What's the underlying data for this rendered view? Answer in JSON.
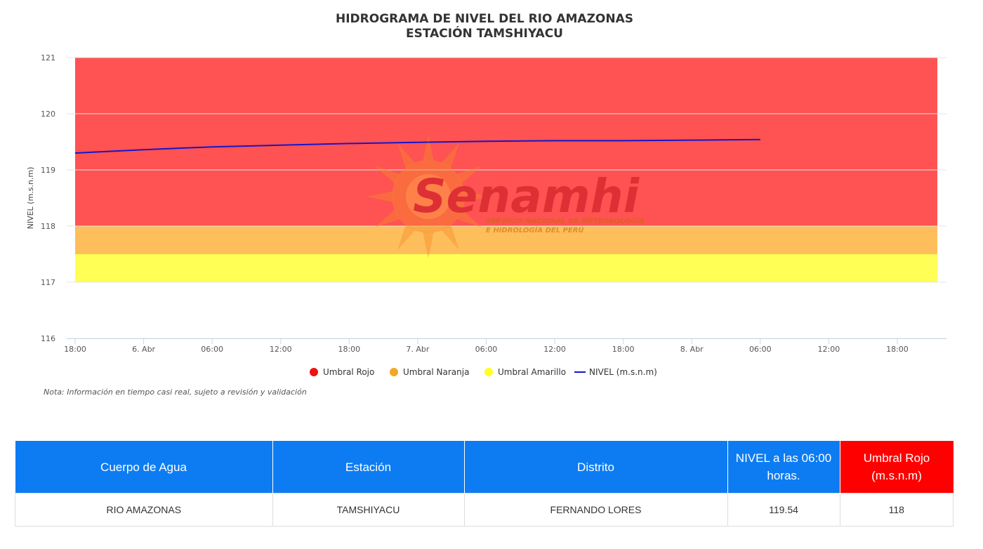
{
  "chart_data": {
    "type": "line",
    "title": "HIDROGRAMA DE NIVEL DEL RIO AMAZONAS",
    "subtitle": "ESTACIÓN TAMSHIYACU",
    "ylabel": "NIVEL (m.s.n.m)",
    "xlabel": "",
    "ylim": [
      116,
      121
    ],
    "yticks": [
      121,
      120,
      119,
      118,
      117,
      116
    ],
    "x_range": [
      "2024-04-05T18:00",
      "2024-04-08T22:00"
    ],
    "xtick_labels": [
      "18:00",
      "6. Abr",
      "06:00",
      "12:00",
      "18:00",
      "7. Abr",
      "06:00",
      "12:00",
      "18:00",
      "8. Abr",
      "06:00",
      "12:00",
      "18:00"
    ],
    "xtick_values": [
      "2024-04-05T18:00",
      "2024-04-06T00:00",
      "2024-04-06T06:00",
      "2024-04-06T12:00",
      "2024-04-06T18:00",
      "2024-04-07T00:00",
      "2024-04-07T06:00",
      "2024-04-07T12:00",
      "2024-04-07T18:00",
      "2024-04-08T00:00",
      "2024-04-08T06:00",
      "2024-04-08T12:00",
      "2024-04-08T18:00"
    ],
    "grid": true,
    "bands": [
      {
        "name": "Umbral Rojo",
        "from": 118,
        "to": 121,
        "color": "#ff5252"
      },
      {
        "name": "Umbral Naranja",
        "from": 117.5,
        "to": 118,
        "color": "#ffbe5c"
      },
      {
        "name": "Umbral Amarillo",
        "from": 117,
        "to": 117.5,
        "color": "#ffff55"
      }
    ],
    "series": [
      {
        "name": "NIVEL (m.s.n.m)",
        "color": "#1515c8",
        "x": [
          "2024-04-05T18:00",
          "2024-04-06T00:00",
          "2024-04-06T06:00",
          "2024-04-06T12:00",
          "2024-04-06T18:00",
          "2024-04-07T00:00",
          "2024-04-07T06:00",
          "2024-04-07T12:00",
          "2024-04-07T18:00",
          "2024-04-08T00:00",
          "2024-04-08T06:00"
        ],
        "y": [
          119.3,
          119.36,
          119.41,
          119.44,
          119.47,
          119.49,
          119.51,
          119.52,
          119.52,
          119.53,
          119.54
        ]
      }
    ],
    "legend": {
      "position": "bottom",
      "items": [
        {
          "label": "Umbral Rojo",
          "color": "#ee1111",
          "marker": "dot"
        },
        {
          "label": "Umbral Naranja",
          "color": "#f5a623",
          "marker": "dot"
        },
        {
          "label": "Umbral Amarillo",
          "color": "#ffff22",
          "marker": "dot"
        },
        {
          "label": "NIVEL (m.s.n.m)",
          "color": "#1515c8",
          "marker": "line"
        }
      ]
    }
  },
  "note": "Nota: Información en tiempo casi real, sujeto a revisión y validación",
  "watermark": {
    "brand": "Senamhi",
    "line1": "SERVICIO NACIONAL DE METEOROLOGÍA",
    "line2": "E HIDROLOGÍA DEL PERÚ"
  },
  "table": {
    "headers": [
      "Cuerpo de Agua",
      "Estación",
      "Distrito",
      "NIVEL a las 06:00 horas.",
      "Umbral Rojo (m.s.n.m)"
    ],
    "row": [
      "RIO AMAZONAS",
      "TAMSHIYACU",
      "FERNANDO LORES",
      "119.54",
      "118"
    ]
  }
}
